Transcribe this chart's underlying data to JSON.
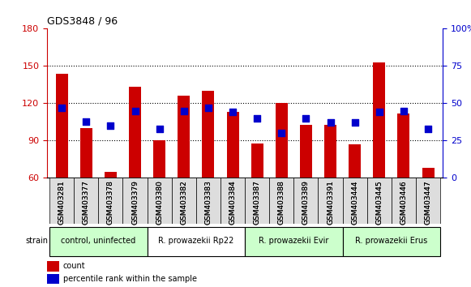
{
  "title": "GDS3848 / 96",
  "samples": [
    "GSM403281",
    "GSM403377",
    "GSM403378",
    "GSM403379",
    "GSM403380",
    "GSM403382",
    "GSM403383",
    "GSM403384",
    "GSM403387",
    "GSM403388",
    "GSM403389",
    "GSM403391",
    "GSM403444",
    "GSM403445",
    "GSM403446",
    "GSM403447"
  ],
  "counts": [
    144,
    100,
    65,
    133,
    90,
    126,
    130,
    113,
    88,
    120,
    103,
    103,
    87,
    153,
    112,
    68
  ],
  "percentiles": [
    47,
    38,
    35,
    45,
    33,
    45,
    47,
    44,
    40,
    30,
    40,
    37,
    37,
    44,
    45,
    33
  ],
  "groups": [
    {
      "label": "control, uninfected",
      "start": 0,
      "end": 4,
      "color": "#ccffcc"
    },
    {
      "label": "R. prowazekii Rp22",
      "start": 4,
      "end": 8,
      "color": "#ffffff"
    },
    {
      "label": "R. prowazekii Evir",
      "start": 8,
      "end": 12,
      "color": "#ccffcc"
    },
    {
      "label": "R. prowazekii Erus",
      "start": 12,
      "end": 16,
      "color": "#ccffcc"
    }
  ],
  "ylim_left": [
    60,
    180
  ],
  "ylim_right": [
    0,
    100
  ],
  "yticks_left": [
    60,
    90,
    120,
    150,
    180
  ],
  "yticks_right": [
    0,
    25,
    50,
    75,
    100
  ],
  "bar_color": "#cc0000",
  "dot_color": "#0000cc",
  "grid_color": "#000000",
  "bg_color": "#ffffff",
  "tick_bg": "#dddddd",
  "left_axis_color": "#cc0000",
  "right_axis_color": "#0000cc",
  "legend_count_label": "count",
  "legend_pct_label": "percentile rank within the sample",
  "bar_width": 0.5,
  "dot_size": 40
}
